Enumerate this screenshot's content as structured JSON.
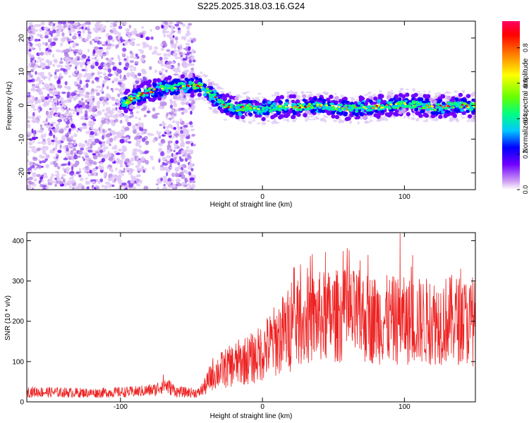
{
  "figure_title": "S225.2025.318.03.16.G24",
  "chart_data": [
    {
      "type": "heatmap",
      "name": "spectrogram",
      "title": "S225.2025.318.03.16.G24",
      "xlabel": "Height of straight line (km)",
      "ylabel": "Frequency (Hz)",
      "xlim": [
        -166,
        150
      ],
      "ylim": [
        -25,
        25
      ],
      "xticks": [
        -100,
        0,
        100
      ],
      "yticks": [
        -20,
        -10,
        0,
        10,
        20
      ],
      "colorbar": {
        "label": "Normalized spectral amplitude",
        "ticks": [
          0.0,
          0.2,
          0.4,
          0.6,
          0.8
        ],
        "range": [
          0,
          0.95
        ],
        "colors": [
          "#ffffff",
          "#cf9ff2",
          "#7000ff",
          "#0000ff",
          "#00c8ff",
          "#00ff80",
          "#66ff00",
          "#ffff00",
          "#ff8000",
          "#ff0000",
          "#ff0060"
        ]
      },
      "ridge": [
        {
          "x": -100,
          "f": 0
        },
        {
          "x": -90,
          "f": 2.5
        },
        {
          "x": -80,
          "f": 4
        },
        {
          "x": -70,
          "f": 5
        },
        {
          "x": -60,
          "f": 5.5
        },
        {
          "x": -50,
          "f": 6
        },
        {
          "x": -45,
          "f": 6
        },
        {
          "x": -38,
          "f": 4
        },
        {
          "x": -30,
          "f": 1
        },
        {
          "x": -20,
          "f": -1
        },
        {
          "x": -10,
          "f": -0.5
        },
        {
          "x": 0,
          "f": -1
        },
        {
          "x": 20,
          "f": -0.5
        },
        {
          "x": 40,
          "f": 0
        },
        {
          "x": 60,
          "f": -1
        },
        {
          "x": 80,
          "f": -0.5
        },
        {
          "x": 100,
          "f": 0.5
        },
        {
          "x": 120,
          "f": -0.5
        },
        {
          "x": 140,
          "f": 0
        },
        {
          "x": 150,
          "f": -0.5
        }
      ],
      "noise_region_x": [
        -166,
        -48
      ]
    },
    {
      "type": "line",
      "name": "snr",
      "xlabel": "Height of straight line (km)",
      "ylabel": "SNR (10 * v/v)",
      "xlim": [
        -166,
        150
      ],
      "ylim": [
        0,
        420
      ],
      "xticks": [
        -100,
        0,
        100
      ],
      "yticks": [
        0,
        100,
        200,
        300,
        400
      ],
      "series_color": "#ee2222",
      "trend": [
        {
          "x": -166,
          "y": 25
        },
        {
          "x": -120,
          "y": 22
        },
        {
          "x": -90,
          "y": 25
        },
        {
          "x": -75,
          "y": 30
        },
        {
          "x": -70,
          "y": 45
        },
        {
          "x": -60,
          "y": 25
        },
        {
          "x": -45,
          "y": 22
        },
        {
          "x": -40,
          "y": 40
        },
        {
          "x": -35,
          "y": 70
        },
        {
          "x": -25,
          "y": 85
        },
        {
          "x": -15,
          "y": 100
        },
        {
          "x": -5,
          "y": 110
        },
        {
          "x": 5,
          "y": 140
        },
        {
          "x": 15,
          "y": 170
        },
        {
          "x": 25,
          "y": 195
        },
        {
          "x": 40,
          "y": 210
        },
        {
          "x": 60,
          "y": 215
        },
        {
          "x": 80,
          "y": 205
        },
        {
          "x": 100,
          "y": 200
        },
        {
          "x": 120,
          "y": 200
        },
        {
          "x": 135,
          "y": 205
        },
        {
          "x": 150,
          "y": 195
        }
      ],
      "peak": {
        "x": 97,
        "y": 418
      }
    }
  ]
}
